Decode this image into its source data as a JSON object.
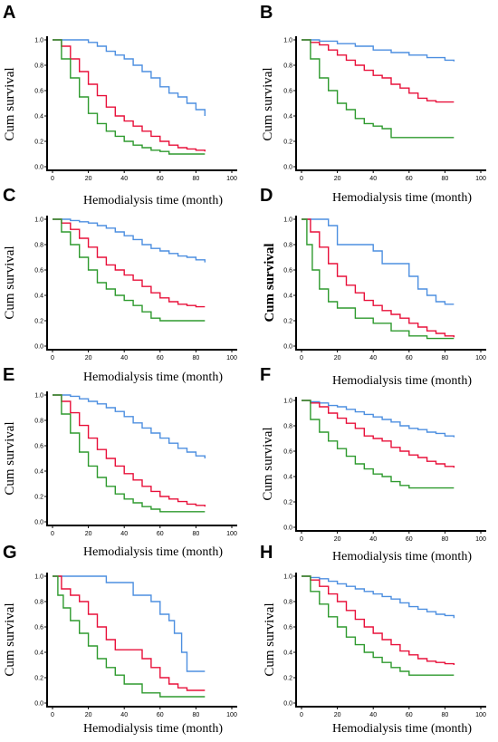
{
  "colors": {
    "blue": "#4d8fe0",
    "red": "#e8103a",
    "green": "#2e9a2e"
  },
  "chart_data": [
    {
      "panel": "A",
      "type": "line",
      "step": true,
      "xlabel": "Hemodialysis time (month)",
      "ylabel": "Cum survival",
      "xlim": [
        0,
        100
      ],
      "ylim": [
        0,
        1
      ],
      "xticks": [
        "0",
        "20",
        "40",
        "60",
        "80",
        "100"
      ],
      "yticks": [
        "0.0",
        "0.2",
        "0.4",
        "0.6",
        "0.8",
        "1.0"
      ],
      "series": [
        {
          "color": "blue",
          "x": [
            0,
            5,
            10,
            15,
            20,
            25,
            30,
            35,
            40,
            45,
            50,
            55,
            60,
            65,
            70,
            75,
            80,
            85
          ],
          "y": [
            1,
            1,
            1,
            1,
            0.98,
            0.95,
            0.91,
            0.88,
            0.85,
            0.8,
            0.75,
            0.7,
            0.63,
            0.58,
            0.55,
            0.5,
            0.45,
            0.4
          ]
        },
        {
          "color": "red",
          "x": [
            0,
            5,
            10,
            15,
            20,
            25,
            30,
            35,
            40,
            45,
            50,
            55,
            60,
            65,
            70,
            75,
            80,
            85
          ],
          "y": [
            1,
            0.95,
            0.85,
            0.75,
            0.65,
            0.56,
            0.47,
            0.4,
            0.36,
            0.32,
            0.28,
            0.24,
            0.2,
            0.17,
            0.15,
            0.14,
            0.13,
            0.12
          ]
        },
        {
          "color": "green",
          "x": [
            0,
            5,
            10,
            15,
            20,
            25,
            30,
            35,
            40,
            45,
            50,
            55,
            60,
            65,
            70,
            75,
            80,
            85
          ],
          "y": [
            1,
            0.85,
            0.7,
            0.55,
            0.42,
            0.34,
            0.28,
            0.24,
            0.2,
            0.17,
            0.15,
            0.13,
            0.12,
            0.1,
            0.1,
            0.1,
            0.1,
            0.1
          ]
        }
      ]
    },
    {
      "panel": "B",
      "type": "line",
      "step": true,
      "xlabel": "Hemodialysis time (month)",
      "ylabel": "Cum survival",
      "xlim": [
        0,
        100
      ],
      "ylim": [
        0,
        1
      ],
      "xticks": [
        "0",
        "20",
        "40",
        "60",
        "80",
        "100"
      ],
      "yticks": [
        "0.0",
        "0.2",
        "0.4",
        "0.6",
        "0.8",
        "1.0"
      ],
      "series": [
        {
          "color": "blue",
          "x": [
            0,
            10,
            20,
            30,
            40,
            50,
            60,
            70,
            80,
            85
          ],
          "y": [
            1,
            0.99,
            0.97,
            0.95,
            0.92,
            0.9,
            0.88,
            0.86,
            0.84,
            0.83
          ]
        },
        {
          "color": "red",
          "x": [
            0,
            5,
            10,
            15,
            20,
            25,
            30,
            35,
            40,
            45,
            50,
            55,
            60,
            65,
            70,
            75,
            80,
            85
          ],
          "y": [
            1,
            0.98,
            0.96,
            0.92,
            0.88,
            0.84,
            0.8,
            0.76,
            0.72,
            0.7,
            0.65,
            0.62,
            0.58,
            0.54,
            0.52,
            0.51,
            0.51,
            0.51
          ]
        },
        {
          "color": "green",
          "x": [
            0,
            5,
            10,
            15,
            20,
            25,
            30,
            35,
            40,
            45,
            50,
            55,
            60,
            70,
            85
          ],
          "y": [
            1,
            0.85,
            0.7,
            0.6,
            0.5,
            0.45,
            0.38,
            0.34,
            0.32,
            0.3,
            0.23,
            0.23,
            0.23,
            0.23,
            0.23
          ]
        }
      ]
    },
    {
      "panel": "C",
      "type": "line",
      "step": true,
      "xlabel": "Hemodialysis time (month)",
      "ylabel": "Cum survival",
      "xlim": [
        0,
        100
      ],
      "ylim": [
        0,
        1
      ],
      "xticks": [
        "0",
        "20",
        "40",
        "60",
        "80",
        "100"
      ],
      "yticks": [
        "0.0",
        "0.2",
        "0.4",
        "0.6",
        "0.8",
        "1.0"
      ],
      "series": [
        {
          "color": "blue",
          "x": [
            0,
            5,
            10,
            15,
            20,
            25,
            30,
            35,
            40,
            45,
            50,
            55,
            60,
            65,
            70,
            75,
            80,
            85
          ],
          "y": [
            1,
            1,
            0.99,
            0.98,
            0.97,
            0.95,
            0.93,
            0.9,
            0.87,
            0.84,
            0.8,
            0.77,
            0.75,
            0.73,
            0.71,
            0.7,
            0.68,
            0.66
          ]
        },
        {
          "color": "red",
          "x": [
            0,
            5,
            10,
            15,
            20,
            25,
            30,
            35,
            40,
            45,
            50,
            55,
            60,
            65,
            70,
            75,
            80,
            85
          ],
          "y": [
            1,
            0.97,
            0.92,
            0.85,
            0.78,
            0.7,
            0.64,
            0.6,
            0.56,
            0.52,
            0.47,
            0.42,
            0.38,
            0.35,
            0.33,
            0.32,
            0.31,
            0.31
          ]
        },
        {
          "color": "green",
          "x": [
            0,
            5,
            10,
            15,
            20,
            25,
            30,
            35,
            40,
            45,
            50,
            55,
            60,
            65,
            70,
            85
          ],
          "y": [
            1,
            0.9,
            0.8,
            0.7,
            0.6,
            0.5,
            0.45,
            0.4,
            0.36,
            0.32,
            0.27,
            0.22,
            0.2,
            0.2,
            0.2,
            0.2
          ]
        }
      ]
    },
    {
      "panel": "D",
      "type": "line",
      "step": true,
      "xlabel": "Hemodialysis time (month)",
      "ylabel": "Cum survival",
      "xlim": [
        0,
        100
      ],
      "ylim": [
        0,
        1
      ],
      "xticks": [
        "0",
        "20",
        "40",
        "60",
        "80",
        "100"
      ],
      "yticks": [
        "0.0",
        "0.2",
        "0.4",
        "0.6",
        "0.8",
        "1.0"
      ],
      "series": [
        {
          "color": "blue",
          "x": [
            0,
            10,
            15,
            20,
            30,
            40,
            45,
            55,
            60,
            65,
            70,
            75,
            80,
            85
          ],
          "y": [
            1,
            1,
            0.95,
            0.8,
            0.8,
            0.75,
            0.65,
            0.65,
            0.55,
            0.45,
            0.4,
            0.35,
            0.33,
            0.33
          ]
        },
        {
          "color": "red",
          "x": [
            0,
            5,
            10,
            15,
            20,
            25,
            30,
            35,
            40,
            45,
            50,
            55,
            60,
            65,
            70,
            75,
            80,
            85
          ],
          "y": [
            1,
            0.9,
            0.78,
            0.65,
            0.55,
            0.48,
            0.42,
            0.36,
            0.32,
            0.28,
            0.25,
            0.22,
            0.18,
            0.15,
            0.12,
            0.1,
            0.08,
            0.07
          ]
        },
        {
          "color": "green",
          "x": [
            0,
            3,
            6,
            10,
            15,
            20,
            30,
            40,
            50,
            60,
            70,
            80,
            85
          ],
          "y": [
            1,
            0.8,
            0.6,
            0.45,
            0.35,
            0.3,
            0.22,
            0.18,
            0.12,
            0.08,
            0.06,
            0.06,
            0.06
          ]
        }
      ]
    },
    {
      "panel": "E",
      "type": "line",
      "step": true,
      "xlabel": "Hemodialysis time (month)",
      "ylabel": "Cum survival",
      "xlim": [
        0,
        100
      ],
      "ylim": [
        0,
        1
      ],
      "xticks": [
        "0",
        "20",
        "40",
        "60",
        "80",
        "100"
      ],
      "yticks": [
        "0.0",
        "0.2",
        "0.4",
        "0.6",
        "0.8",
        "1.0"
      ],
      "series": [
        {
          "color": "blue",
          "x": [
            0,
            5,
            10,
            15,
            20,
            25,
            30,
            35,
            40,
            45,
            50,
            55,
            60,
            65,
            70,
            75,
            80,
            85
          ],
          "y": [
            1,
            1,
            0.99,
            0.97,
            0.95,
            0.93,
            0.9,
            0.87,
            0.83,
            0.78,
            0.74,
            0.7,
            0.66,
            0.62,
            0.58,
            0.55,
            0.52,
            0.5
          ]
        },
        {
          "color": "red",
          "x": [
            0,
            5,
            10,
            15,
            20,
            25,
            30,
            35,
            40,
            45,
            50,
            55,
            60,
            65,
            70,
            75,
            80,
            85
          ],
          "y": [
            1,
            0.95,
            0.86,
            0.76,
            0.66,
            0.57,
            0.5,
            0.44,
            0.38,
            0.33,
            0.28,
            0.24,
            0.2,
            0.18,
            0.16,
            0.14,
            0.13,
            0.12
          ]
        },
        {
          "color": "green",
          "x": [
            0,
            5,
            10,
            15,
            20,
            25,
            30,
            35,
            40,
            45,
            50,
            55,
            60,
            70,
            85
          ],
          "y": [
            1,
            0.85,
            0.7,
            0.55,
            0.44,
            0.35,
            0.28,
            0.22,
            0.18,
            0.15,
            0.12,
            0.1,
            0.08,
            0.08,
            0.08
          ]
        }
      ]
    },
    {
      "panel": "F",
      "type": "line",
      "step": true,
      "xlabel": "Hemodialysis time (month)",
      "ylabel": "Cum survival",
      "xlim": [
        0,
        100
      ],
      "ylim": [
        0,
        1
      ],
      "xticks": [
        "0",
        "20",
        "40",
        "60",
        "80",
        "100"
      ],
      "yticks": [
        "0.0",
        "0.2",
        "0.4",
        "0.6",
        "0.8",
        "1.0"
      ],
      "series": [
        {
          "color": "blue",
          "x": [
            0,
            5,
            10,
            15,
            20,
            25,
            30,
            35,
            40,
            45,
            50,
            55,
            60,
            65,
            70,
            75,
            80,
            85
          ],
          "y": [
            1,
            0.99,
            0.98,
            0.96,
            0.95,
            0.93,
            0.91,
            0.89,
            0.87,
            0.85,
            0.83,
            0.8,
            0.78,
            0.77,
            0.75,
            0.74,
            0.72,
            0.71
          ]
        },
        {
          "color": "red",
          "x": [
            0,
            5,
            10,
            15,
            20,
            25,
            30,
            35,
            40,
            45,
            50,
            55,
            60,
            65,
            70,
            75,
            80,
            85
          ],
          "y": [
            1,
            0.98,
            0.95,
            0.9,
            0.86,
            0.82,
            0.78,
            0.72,
            0.7,
            0.68,
            0.63,
            0.6,
            0.57,
            0.55,
            0.52,
            0.5,
            0.48,
            0.47
          ]
        },
        {
          "color": "green",
          "x": [
            0,
            5,
            10,
            15,
            20,
            25,
            30,
            35,
            40,
            45,
            50,
            55,
            60,
            70,
            85
          ],
          "y": [
            1,
            0.85,
            0.75,
            0.68,
            0.62,
            0.56,
            0.5,
            0.46,
            0.42,
            0.4,
            0.36,
            0.33,
            0.31,
            0.31,
            0.31
          ]
        }
      ]
    },
    {
      "panel": "G",
      "type": "line",
      "step": true,
      "xlabel": "Hemodialysis time (month)",
      "ylabel": "Cum survival",
      "xlim": [
        0,
        100
      ],
      "ylim": [
        0,
        1
      ],
      "xticks": [
        "0",
        "20",
        "40",
        "60",
        "80",
        "100"
      ],
      "yticks": [
        "0.0",
        "0.2",
        "0.4",
        "0.6",
        "0.8",
        "1.0"
      ],
      "series": [
        {
          "color": "blue",
          "x": [
            0,
            25,
            30,
            40,
            45,
            50,
            55,
            60,
            65,
            68,
            72,
            75,
            85
          ],
          "y": [
            1,
            1,
            0.95,
            0.95,
            0.85,
            0.85,
            0.8,
            0.7,
            0.65,
            0.55,
            0.4,
            0.25,
            0.25
          ]
        },
        {
          "color": "red",
          "x": [
            0,
            5,
            10,
            15,
            20,
            25,
            30,
            35,
            45,
            50,
            55,
            60,
            65,
            70,
            75,
            80,
            85
          ],
          "y": [
            1,
            0.9,
            0.85,
            0.8,
            0.7,
            0.6,
            0.5,
            0.42,
            0.42,
            0.35,
            0.28,
            0.2,
            0.15,
            0.12,
            0.1,
            0.1,
            0.1
          ]
        },
        {
          "color": "green",
          "x": [
            0,
            3,
            6,
            10,
            15,
            20,
            25,
            30,
            35,
            40,
            50,
            60,
            70,
            85
          ],
          "y": [
            1,
            0.85,
            0.75,
            0.65,
            0.55,
            0.45,
            0.35,
            0.28,
            0.22,
            0.15,
            0.08,
            0.05,
            0.05,
            0.05
          ]
        }
      ]
    },
    {
      "panel": "H",
      "type": "line",
      "step": true,
      "xlabel": "Hemodialysis time (month)",
      "ylabel": "Cum survival",
      "xlim": [
        0,
        100
      ],
      "ylim": [
        0,
        1
      ],
      "xticks": [
        "0",
        "20",
        "40",
        "60",
        "80",
        "100"
      ],
      "yticks": [
        "0.0",
        "0.2",
        "0.4",
        "0.6",
        "0.8",
        "1.0"
      ],
      "series": [
        {
          "color": "blue",
          "x": [
            0,
            5,
            10,
            15,
            20,
            25,
            30,
            35,
            40,
            45,
            50,
            55,
            60,
            65,
            70,
            75,
            80,
            85
          ],
          "y": [
            1,
            0.99,
            0.98,
            0.96,
            0.94,
            0.92,
            0.9,
            0.88,
            0.86,
            0.84,
            0.82,
            0.79,
            0.76,
            0.74,
            0.72,
            0.7,
            0.69,
            0.67
          ]
        },
        {
          "color": "red",
          "x": [
            0,
            5,
            10,
            15,
            20,
            25,
            30,
            35,
            40,
            45,
            50,
            55,
            60,
            65,
            70,
            75,
            80,
            85
          ],
          "y": [
            1,
            0.97,
            0.92,
            0.86,
            0.8,
            0.73,
            0.66,
            0.6,
            0.55,
            0.5,
            0.46,
            0.41,
            0.38,
            0.35,
            0.33,
            0.32,
            0.31,
            0.3
          ]
        },
        {
          "color": "green",
          "x": [
            0,
            5,
            10,
            15,
            20,
            25,
            30,
            35,
            40,
            45,
            50,
            55,
            60,
            70,
            85
          ],
          "y": [
            1,
            0.88,
            0.78,
            0.68,
            0.6,
            0.52,
            0.46,
            0.4,
            0.36,
            0.32,
            0.28,
            0.25,
            0.22,
            0.22,
            0.22
          ]
        }
      ]
    }
  ]
}
